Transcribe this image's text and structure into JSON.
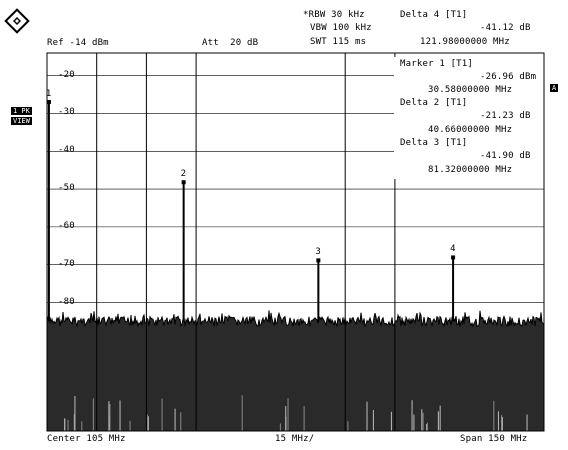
{
  "header": {
    "rbw": "*RBW 30 kHz",
    "vbw": "VBW 100 kHz",
    "swt": "SWT 115 ms",
    "ref": "Ref -14 dBm",
    "att": "Att  20 dB",
    "delta_title": "Delta 4 [T1]",
    "delta_level": "-41.12 dB",
    "delta_freq": "121.98000000 MHz"
  },
  "marker_table": {
    "m1_title": "Marker 1 [T1]",
    "m1_level": "-26.96 dBm",
    "m1_freq": "30.58000000 MHz",
    "m2_title": "Delta 2 [T1]",
    "m2_level": "-21.23 dB",
    "m2_freq": "40.66000000 MHz",
    "m3_title": "Delta 3 [T1]",
    "m3_level": "-41.90 dB",
    "m3_freq": "81.32000000 MHz"
  },
  "y_ticks": [
    "-20",
    "-30",
    "-40",
    "-50",
    "-60",
    "-70",
    "-80"
  ],
  "left_badges": [
    "1 PK",
    "VIEW"
  ],
  "right_badge": "A",
  "footer": {
    "center": "Center 105 MHz",
    "div": "15 MHz/",
    "span": "Span 150 MHz"
  },
  "markers": [
    {
      "label": "1",
      "level_dbm": -26.96,
      "freq_mhz": 30.58
    },
    {
      "label": "2",
      "level_dbm": -48.19,
      "freq_mhz": 71.24
    },
    {
      "label": "3",
      "level_dbm": -68.86,
      "freq_mhz": 111.9
    },
    {
      "label": "4",
      "level_dbm": -68.08,
      "freq_mhz": 152.56
    }
  ],
  "colors": {
    "trace": "#000000",
    "grid": "#000000",
    "background": "#ffffff"
  }
}
